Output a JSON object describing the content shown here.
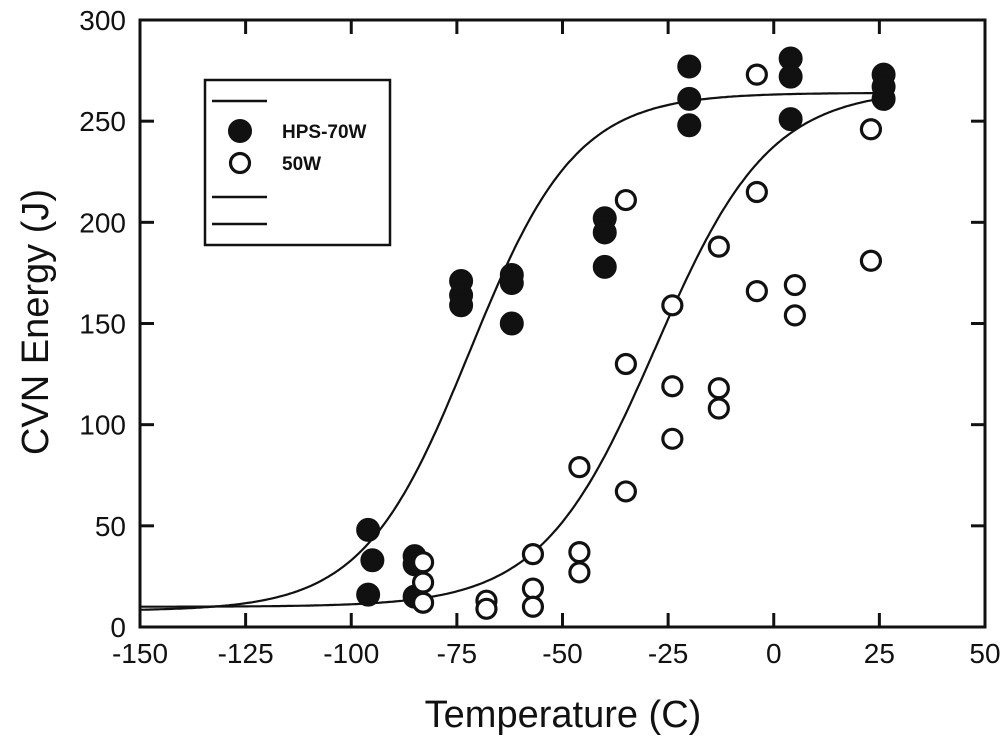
{
  "chart_data": {
    "type": "scatter",
    "title": "",
    "xlabel": "Temperature  (C)",
    "ylabel": "CVN Energy  (J)",
    "xlim": [
      -150,
      50
    ],
    "ylim": [
      0,
      300
    ],
    "xticks": [
      "-150",
      "-125",
      "-100",
      "-75",
      "-50",
      "-25",
      "0",
      "25",
      "50"
    ],
    "yticks": [
      "0",
      "50",
      "100",
      "150",
      "200",
      "250",
      "300"
    ],
    "grid": false,
    "legend_position": "top-left",
    "colors": {
      "ink": "#111111",
      "background": "#ffffff"
    },
    "series": [
      {
        "name": "HPS-70W",
        "marker": "filled-circle",
        "points": [
          [
            -96,
            48
          ],
          [
            -95,
            33
          ],
          [
            -96,
            16
          ],
          [
            -85,
            35
          ],
          [
            -85,
            31
          ],
          [
            -85,
            15
          ],
          [
            -74,
            171
          ],
          [
            -74,
            164
          ],
          [
            -74,
            159
          ],
          [
            -62,
            174
          ],
          [
            -62,
            170
          ],
          [
            -62,
            150
          ],
          [
            -40,
            202
          ],
          [
            -40,
            195
          ],
          [
            -40,
            178
          ],
          [
            -20,
            277
          ],
          [
            -20,
            261
          ],
          [
            -20,
            248
          ],
          [
            4,
            281
          ],
          [
            4,
            272
          ],
          [
            4,
            251
          ],
          [
            26,
            273
          ],
          [
            26,
            267
          ],
          [
            26,
            261
          ]
        ]
      },
      {
        "name": "50W",
        "marker": "open-circle",
        "points": [
          [
            -83,
            32
          ],
          [
            -83,
            22
          ],
          [
            -83,
            12
          ],
          [
            -68,
            13
          ],
          [
            -68,
            9
          ],
          [
            -57,
            36
          ],
          [
            -57,
            19
          ],
          [
            -57,
            10
          ],
          [
            -46,
            79
          ],
          [
            -46,
            37
          ],
          [
            -46,
            27
          ],
          [
            -35,
            211
          ],
          [
            -35,
            130
          ],
          [
            -35,
            67
          ],
          [
            -24,
            159
          ],
          [
            -24,
            119
          ],
          [
            -24,
            93
          ],
          [
            -13,
            188
          ],
          [
            -13,
            118
          ],
          [
            -13,
            108
          ],
          [
            -4,
            273
          ],
          [
            -4,
            215
          ],
          [
            -4,
            166
          ],
          [
            5,
            169
          ],
          [
            5,
            154
          ],
          [
            23,
            246
          ],
          [
            23,
            181
          ]
        ]
      }
    ],
    "fit_curves": [
      {
        "series": "HPS-70W",
        "lower_shelf": 8,
        "upper_shelf": 264,
        "midpoint": -72,
        "width": 12.6
      },
      {
        "series": "50W",
        "lower_shelf": 10,
        "upper_shelf": 266,
        "midpoint": -28,
        "width": 13.5
      }
    ],
    "legend": {
      "entries": [
        "HPS-70W",
        "50W"
      ],
      "blank_line_samples": 3
    }
  }
}
